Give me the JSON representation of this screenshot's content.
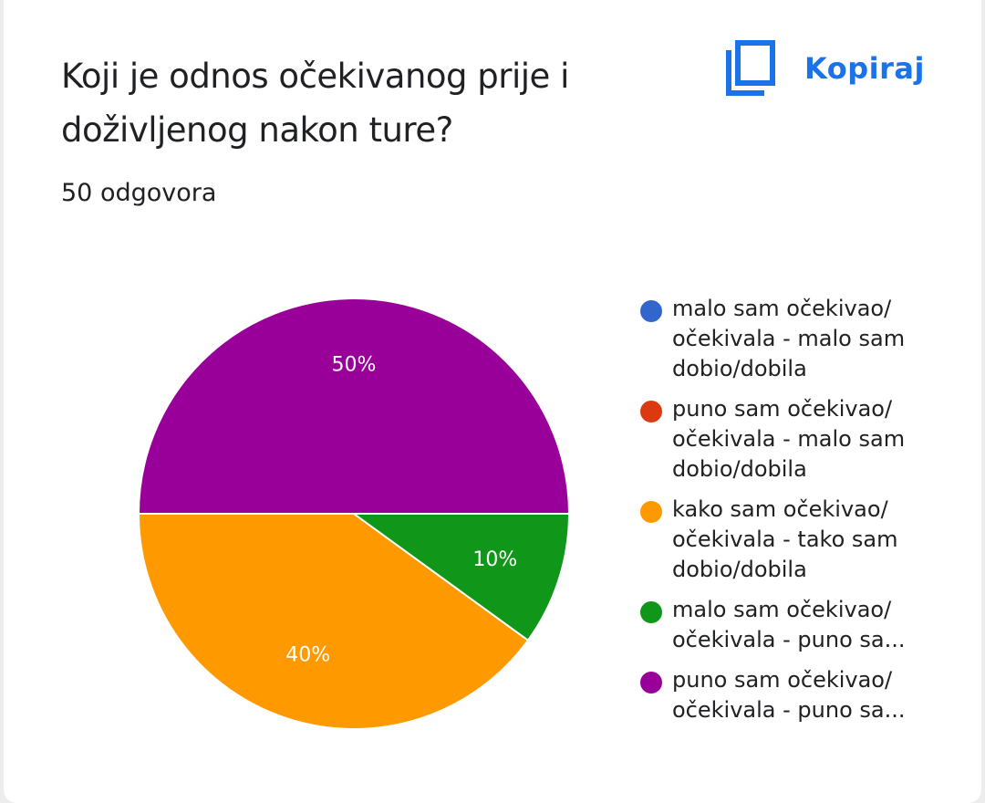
{
  "card": {
    "title": "Koji je odnos očekivanog prije i doživljenog nakon ture?",
    "responses": "50 odgovora",
    "copy_label": "Kopiraj",
    "copy_icon": "copy-icon",
    "accent_color": "#1a73e8"
  },
  "chart_data": {
    "type": "pie",
    "categories": [
      "malo sam očekivao/ očekivala - malo sam dobio/dobila",
      "puno sam očekivao/ očekivala - malo sam dobio/dobila",
      "kako sam očekivao/ očekivala - tako sam dobio/dobila",
      "malo sam očekivao/ očekivala - puno sa...",
      "puno sam očekivao/ očekivala - puno sa..."
    ],
    "values": [
      0,
      0,
      40,
      10,
      50
    ],
    "data_labels": [
      "",
      "",
      "40%",
      "10%",
      "50%"
    ],
    "colors": [
      "#3366cc",
      "#dc3912",
      "#ff9900",
      "#109618",
      "#990099"
    ],
    "legend_position": "right"
  }
}
